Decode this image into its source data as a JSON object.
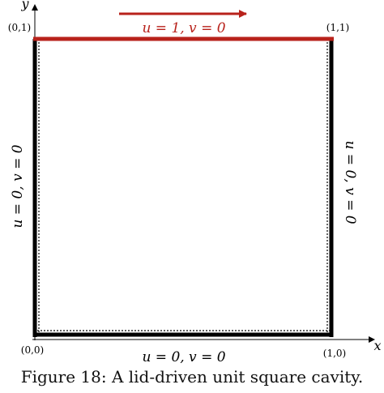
{
  "axes": {
    "x_label": "x",
    "y_label": "y"
  },
  "corners": {
    "top_left": "(0,1)",
    "top_right": "(1,1)",
    "bottom_left": "(0,0)",
    "bottom_right": "(1,0)"
  },
  "boundary_conditions": {
    "top": "u = 1, v = 0",
    "bottom": "u = 0, v = 0",
    "left": "u = 0, v = 0",
    "right": "u = 0, v = 0"
  },
  "colors": {
    "lid": "#b8221b",
    "wall": "#000000"
  },
  "caption": "Figure 18: A lid-driven unit square cavity."
}
